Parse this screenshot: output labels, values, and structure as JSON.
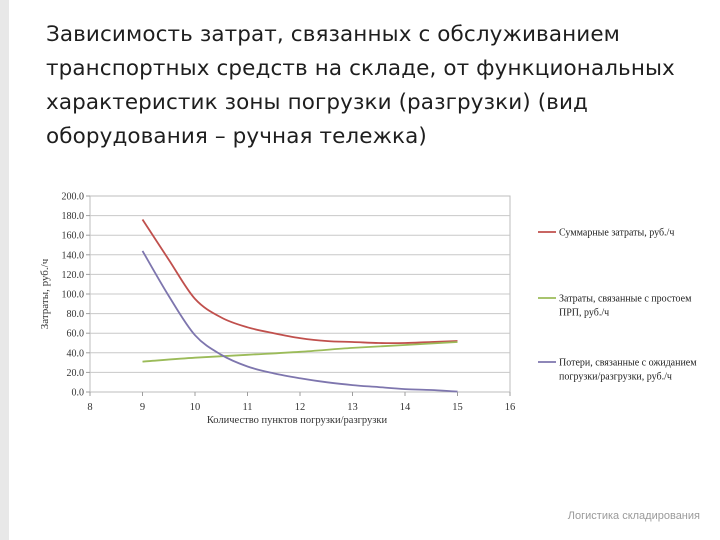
{
  "slide": {
    "title": "Зависимость затрат, связанных с обслуживанием транспортных средств на складе, от функциональных характеристик зоны погрузки (разгрузки) (вид оборудования – ручная тележка)",
    "footer": "Логистика складирования"
  },
  "chart_data": {
    "type": "line",
    "xlabel": "Количество пунктов погрузки/разгрузки",
    "ylabel": "Затраты, руб./ч",
    "xlim": [
      8,
      16
    ],
    "ylim": [
      0,
      200
    ],
    "x_ticks": [
      "8",
      "9",
      "10",
      "11",
      "12",
      "13",
      "14",
      "15",
      "16"
    ],
    "y_ticks": [
      "0.0",
      "20.0",
      "40.0",
      "60.0",
      "80.0",
      "100.0",
      "120.0",
      "140.0",
      "160.0",
      "180.0",
      "200.0"
    ],
    "grid": "horizontal",
    "legend": "right",
    "series": [
      {
        "name": "Суммарные затраты, руб./ч",
        "color": "#c0504d",
        "points": [
          [
            9,
            176
          ],
          [
            9.5,
            135
          ],
          [
            10,
            95
          ],
          [
            10.5,
            76
          ],
          [
            11,
            66
          ],
          [
            11.5,
            60
          ],
          [
            12,
            55
          ],
          [
            12.5,
            52
          ],
          [
            13,
            51
          ],
          [
            13.5,
            50
          ],
          [
            14,
            50
          ],
          [
            14.5,
            51
          ],
          [
            15,
            52
          ]
        ]
      },
      {
        "name": "Затраты, связанные с простоем ПРП, руб./ч",
        "color": "#9bbb59",
        "points": [
          [
            9,
            31
          ],
          [
            10,
            35
          ],
          [
            11,
            38
          ],
          [
            12,
            41
          ],
          [
            13,
            45
          ],
          [
            14,
            48
          ],
          [
            15,
            51
          ]
        ]
      },
      {
        "name": "Потери, связанные с ожиданием погрузки/разгрузки, руб./ч",
        "color": "#7e76ae",
        "points": [
          [
            9,
            144
          ],
          [
            9.5,
            98
          ],
          [
            10,
            58
          ],
          [
            10.5,
            38
          ],
          [
            11,
            26
          ],
          [
            11.5,
            19
          ],
          [
            12,
            14
          ],
          [
            12.5,
            10
          ],
          [
            13,
            7
          ],
          [
            13.5,
            5
          ],
          [
            14,
            3
          ],
          [
            14.5,
            2
          ],
          [
            15,
            0.5
          ]
        ]
      }
    ]
  }
}
